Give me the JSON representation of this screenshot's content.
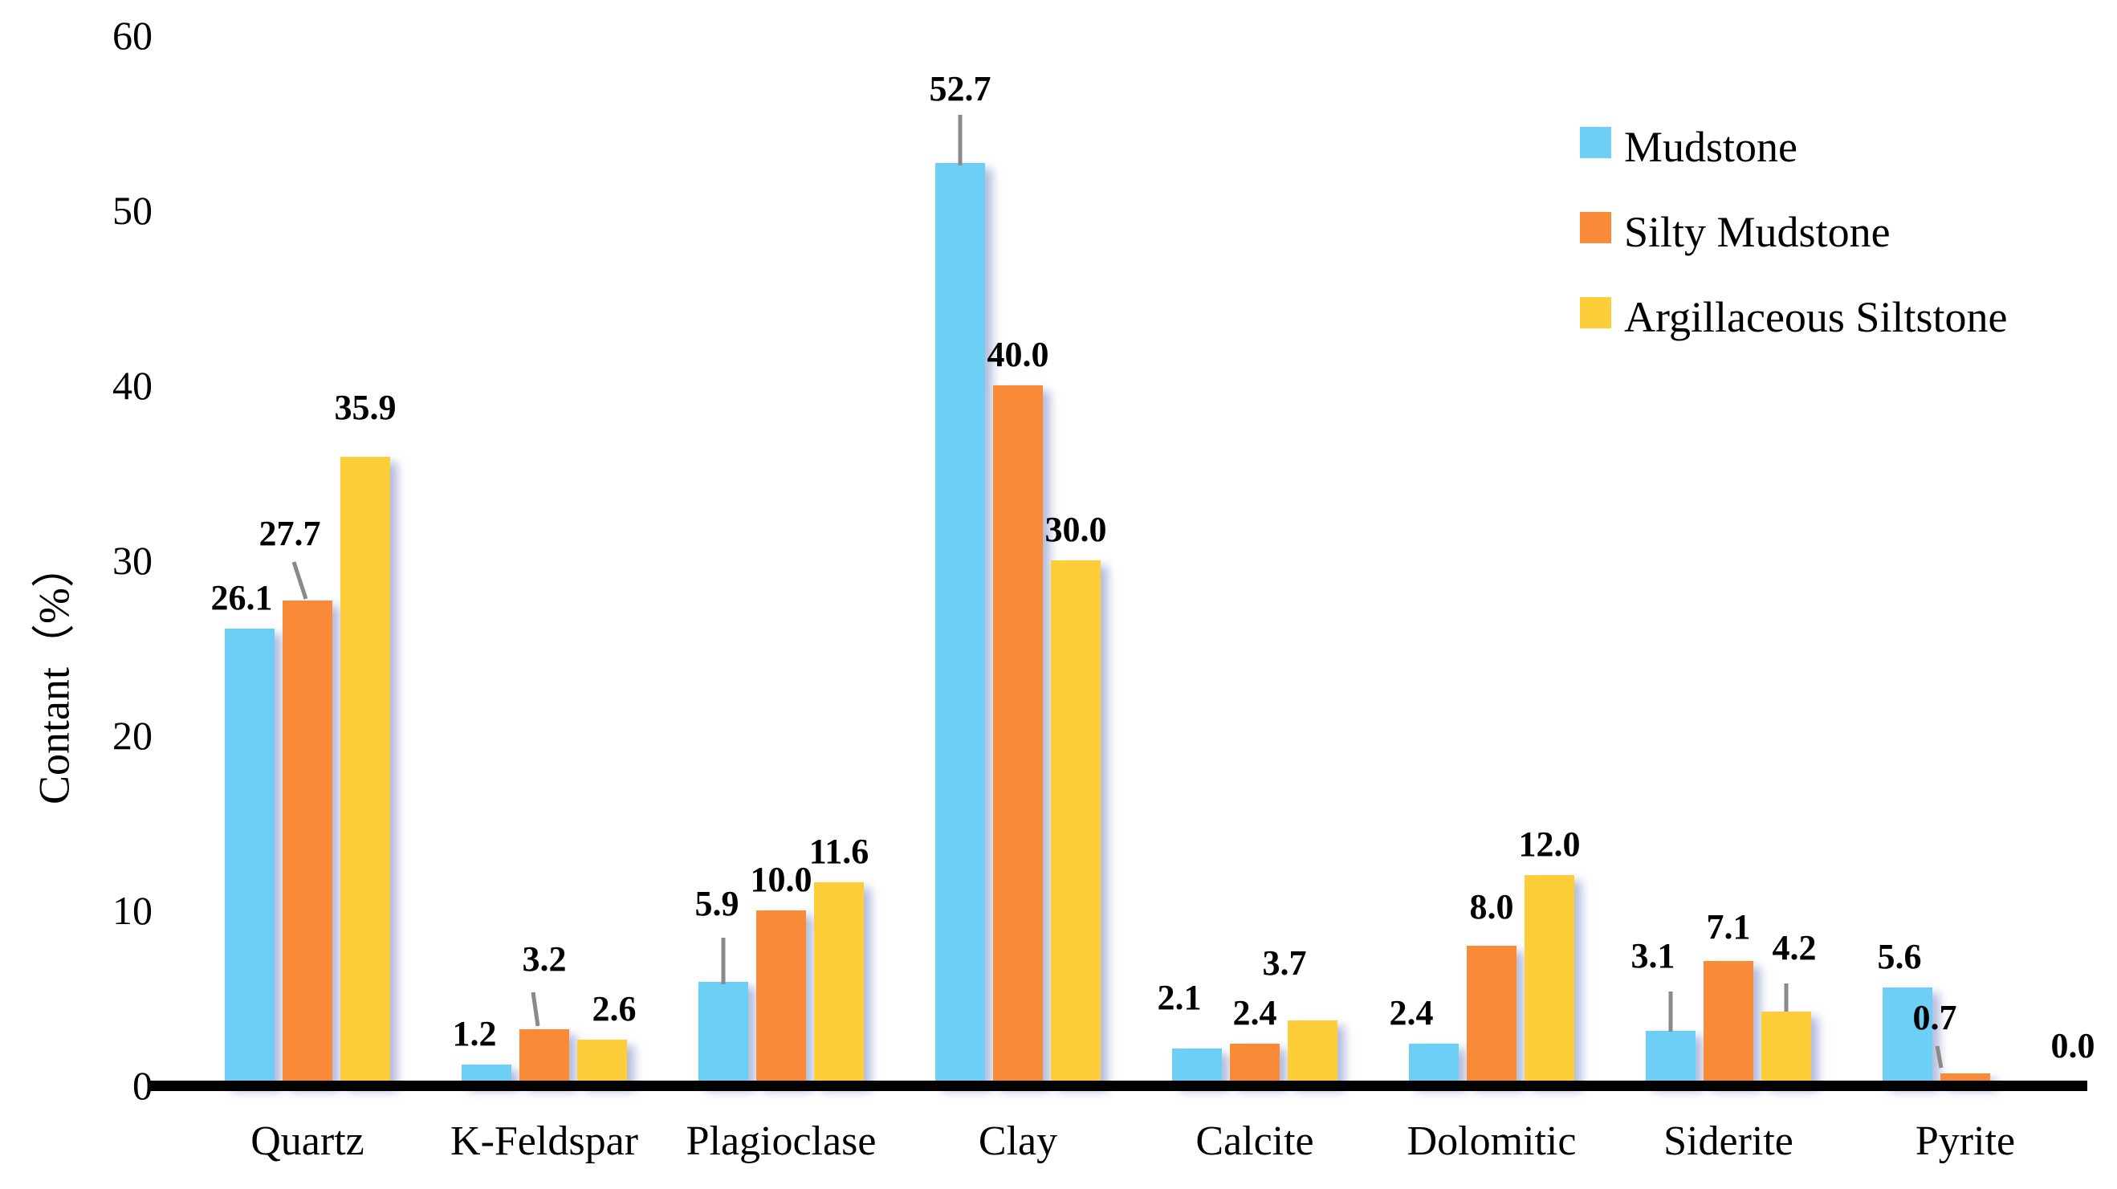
{
  "chart_data": {
    "type": "bar",
    "title": "",
    "ylabel": "Contant（%）",
    "xlabel": "",
    "ylim": [
      0,
      60
    ],
    "yticks": [
      60,
      50,
      40,
      30,
      20,
      10,
      0
    ],
    "grid": false,
    "legend_position": "top-right",
    "categories": [
      "Quartz",
      "K-Feldspar",
      "Plagioclase",
      "Clay",
      "Calcite",
      "Dolomitic",
      "Siderite",
      "Pyrite"
    ],
    "series": [
      {
        "name": "Mudstone",
        "color": "#6ECFF6",
        "values": [
          26.1,
          1.2,
          5.9,
          52.7,
          2.1,
          2.4,
          3.1,
          5.6
        ],
        "labels": [
          "26.1",
          "1.2",
          "5.9",
          "52.7",
          "2.1",
          "2.4",
          "3.1",
          "5.6"
        ]
      },
      {
        "name": "Silty Mudstone",
        "color": "#F98A38",
        "values": [
          27.7,
          3.2,
          10.0,
          40.0,
          2.4,
          8.0,
          7.1,
          0.7
        ],
        "labels": [
          "27.7",
          "3.2",
          "10.0",
          "40.0",
          "2.4",
          "8.0",
          "7.1",
          "0.7"
        ]
      },
      {
        "name": "Argillaceous Siltstone",
        "color": "#FDCE39",
        "values": [
          35.9,
          2.6,
          11.6,
          30.0,
          3.7,
          12.0,
          4.2,
          0.0
        ],
        "labels": [
          "35.9",
          "2.6",
          "11.6",
          "30.0",
          "3.7",
          "12.0",
          "4.2",
          "0.0"
        ]
      }
    ]
  },
  "colors": {
    "axis": "#000000",
    "leader_line": "#8a8a8a",
    "bar_shadow": "rgba(128,143,199,0.6)",
    "text": "#000000",
    "background": "#ffffff"
  }
}
